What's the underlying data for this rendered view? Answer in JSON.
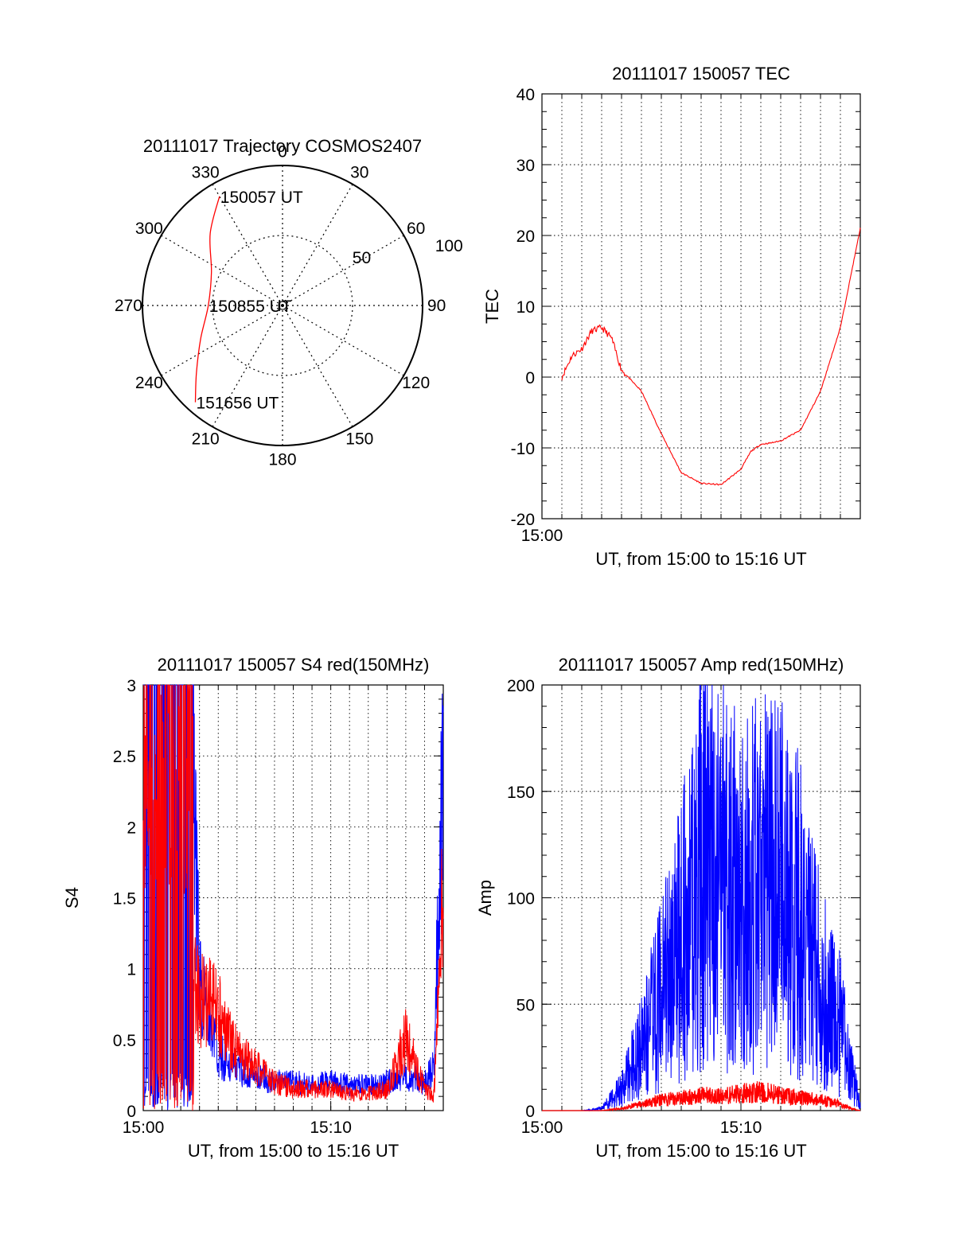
{
  "chart_data": [
    {
      "type": "polar",
      "title": "20111017 Trajectory COSMOS2407",
      "azimuth_ticks": [
        "0",
        "30",
        "60",
        "90",
        "120",
        "150",
        "180",
        "210",
        "240",
        "270",
        "300",
        "330"
      ],
      "radius_ticks": [
        "50",
        "100"
      ],
      "rlim": [
        0,
        100
      ],
      "trajectory": [
        {
          "az": 330,
          "r": 90
        },
        {
          "az": 315,
          "r": 73
        },
        {
          "az": 295,
          "r": 56
        },
        {
          "az": 270,
          "r": 53
        },
        {
          "az": 248,
          "r": 63
        },
        {
          "az": 232,
          "r": 78
        },
        {
          "az": 222,
          "r": 93
        }
      ],
      "annotations": [
        {
          "text": "150057 UT",
          "az": 330,
          "r": 90
        },
        {
          "text": "150855 UT",
          "az": 270,
          "r": 53
        },
        {
          "text": "151656 UT",
          "az": 222,
          "r": 93
        }
      ],
      "color": "#ff0000"
    },
    {
      "type": "line",
      "title": "20111017 150057 TEC",
      "ylabel": "TEC",
      "xlabel": "UT, from 15:00 to 15:16 UT",
      "xlim": [
        "15:00",
        "15:16"
      ],
      "xticks": [
        "15:00"
      ],
      "ylim": [
        -20,
        40
      ],
      "yticks": [
        "-20",
        "-10",
        "0",
        "10",
        "20",
        "30",
        "40"
      ],
      "grid": true,
      "series": [
        {
          "color": "#ff0000",
          "x": [
            "15:01",
            "15:01:30",
            "15:02",
            "15:02:30",
            "15:03",
            "15:03:30",
            "15:04",
            "15:05",
            "15:06",
            "15:07",
            "15:08",
            "15:09",
            "15:10",
            "15:10:30",
            "15:11",
            "15:11:30",
            "15:12",
            "15:13",
            "15:14",
            "15:15",
            "15:15:30",
            "15:16"
          ],
          "y": [
            0,
            3,
            4,
            6.5,
            7,
            5.5,
            1,
            -2,
            -8,
            -13.5,
            -15,
            -15.2,
            -13,
            -10.5,
            -9.5,
            -9.3,
            -9,
            -7.5,
            -2,
            7,
            14,
            21
          ]
        }
      ]
    },
    {
      "type": "line",
      "title": "20111017 150057 S4 red(150MHz)",
      "ylabel": "S4",
      "xlabel": "UT, from 15:00 to 15:16 UT",
      "xlim": [
        "15:00",
        "15:16"
      ],
      "xticks": [
        "15:00",
        "15:10"
      ],
      "ylim": [
        0,
        3
      ],
      "yticks": [
        "0",
        "0.5",
        "1",
        "1.5",
        "2",
        "2.5",
        "3"
      ],
      "grid": true,
      "series": [
        {
          "color": "#0000ff",
          "x": [
            "15:00",
            "15:01",
            "15:02",
            "15:02:30",
            "15:03",
            "15:04",
            "15:05",
            "15:06",
            "15:07",
            "15:08",
            "15:09",
            "15:10",
            "15:11",
            "15:12",
            "15:13",
            "15:14",
            "15:15",
            "15:15:30",
            "15:16"
          ],
          "y": [
            3,
            3,
            3,
            3,
            0.9,
            0.4,
            0.3,
            0.25,
            0.2,
            0.2,
            0.18,
            0.2,
            0.18,
            0.18,
            0.2,
            0.25,
            0.2,
            0.3,
            2.5
          ]
        },
        {
          "color": "#ff0000",
          "x": [
            "15:00",
            "15:01",
            "15:02",
            "15:02:30",
            "15:03",
            "15:04",
            "15:05",
            "15:06",
            "15:07",
            "15:08",
            "15:09",
            "15:10",
            "15:11",
            "15:12",
            "15:13",
            "15:14",
            "15:15",
            "15:15:30",
            "15:16"
          ],
          "y": [
            3,
            1.5,
            3,
            0.9,
            0.8,
            0.7,
            0.4,
            0.3,
            0.2,
            0.15,
            0.15,
            0.15,
            0.12,
            0.12,
            0.15,
            0.5,
            0.15,
            0.1,
            1.6
          ]
        }
      ]
    },
    {
      "type": "line",
      "title": "20111017 150057 Amp red(150MHz)",
      "ylabel": "Amp",
      "xlabel": "UT, from 15:00 to 15:16 UT",
      "xlim": [
        "15:00",
        "15:16"
      ],
      "xticks": [
        "15:00",
        "15:10"
      ],
      "ylim": [
        0,
        200
      ],
      "yticks": [
        "0",
        "50",
        "100",
        "150",
        "200"
      ],
      "grid": true,
      "series": [
        {
          "color": "#0000ff",
          "x": [
            "15:00",
            "15:02",
            "15:03",
            "15:04",
            "15:05",
            "15:06",
            "15:07",
            "15:08",
            "15:09",
            "15:10",
            "15:11",
            "15:12",
            "15:13",
            "15:14",
            "15:15",
            "15:15:30",
            "15:16"
          ],
          "y": [
            0,
            0,
            1,
            10,
            30,
            55,
            80,
            120,
            110,
            100,
            110,
            105,
            90,
            60,
            40,
            20,
            2
          ]
        },
        {
          "color": "#ff0000",
          "x": [
            "15:00",
            "15:02",
            "15:03",
            "15:04",
            "15:05",
            "15:06",
            "15:07",
            "15:08",
            "15:09",
            "15:10",
            "15:11",
            "15:12",
            "15:13",
            "15:14",
            "15:15",
            "15:15:30",
            "15:16"
          ],
          "y": [
            0,
            0,
            0,
            1,
            3,
            5,
            6,
            7,
            7,
            8,
            9,
            7,
            6,
            5,
            3,
            1,
            0
          ]
        }
      ]
    }
  ]
}
